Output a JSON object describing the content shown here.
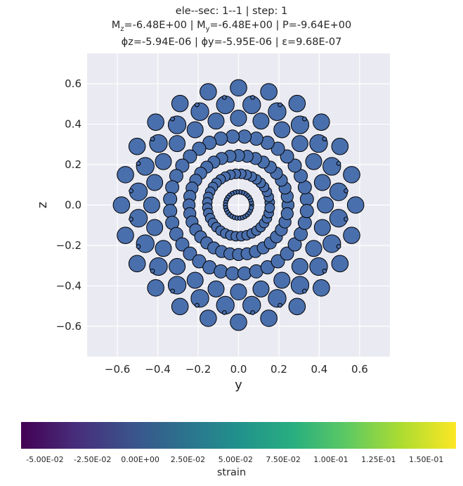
{
  "title": {
    "line1": "ele--sec: 1--1 | step: 1",
    "line2": "Mz=-6.48E+00 | My=-6.48E+00 | P=-9.64E+00",
    "line3": "ϕz=-5.94E-06 | ϕy=-5.95E-06 | ε=9.68E-07"
  },
  "chart_data": {
    "type": "scatter",
    "xlabel": "y",
    "ylabel": "z",
    "xlim": [
      -0.75,
      0.75
    ],
    "ylim": [
      -0.75,
      0.75
    ],
    "xticks": [
      "−0.6",
      "−0.4",
      "−0.2",
      "0.0",
      "0.2",
      "0.4",
      "0.6"
    ],
    "xtick_values": [
      -0.6,
      -0.4,
      -0.2,
      0.0,
      0.2,
      0.4,
      0.6
    ],
    "yticks": [
      "−0.6",
      "−0.4",
      "−0.2",
      "0.0",
      "0.2",
      "0.4",
      "0.6"
    ],
    "ytick_values": [
      -0.6,
      -0.4,
      -0.2,
      0.0,
      0.2,
      0.4,
      0.6
    ],
    "grid": true,
    "fiber_color": "#4a6fad",
    "rings": [
      {
        "radius": 0.065,
        "count": 30,
        "fiber_size": 0.011
      },
      {
        "radius": 0.155,
        "count": 36,
        "fiber_size": 0.024
      },
      {
        "radius": 0.245,
        "count": 36,
        "fiber_size": 0.03
      },
      {
        "radius": 0.34,
        "count": 36,
        "fiber_size": 0.033
      },
      {
        "radius": 0.43,
        "count": 24,
        "fiber_size": 0.04
      },
      {
        "radius": 0.5,
        "count": 24,
        "fiber_size": 0.044
      },
      {
        "radius": 0.58,
        "count": 24,
        "fiber_size": 0.041
      },
      {
        "radius": 0.537,
        "count": 24,
        "fiber_size": 0.01
      }
    ]
  },
  "colorbar": {
    "label": "strain",
    "colors": [
      "#440154",
      "#472d7b",
      "#3b528b",
      "#2c728e",
      "#21918c",
      "#28ae80",
      "#5ec962",
      "#addc30",
      "#fde725"
    ],
    "ticks": [
      "-5.00E-02",
      "-2.50E-02",
      "0.00E+00",
      "2.50E-02",
      "5.00E-02",
      "7.50E-02",
      "1.00E-01",
      "1.25E-01",
      "1.50E-01"
    ],
    "tick_values": [
      -0.05,
      -0.025,
      0.0,
      0.025,
      0.05,
      0.075,
      0.1,
      0.125,
      0.15
    ],
    "range": [
      -0.0625,
      0.1656
    ]
  }
}
